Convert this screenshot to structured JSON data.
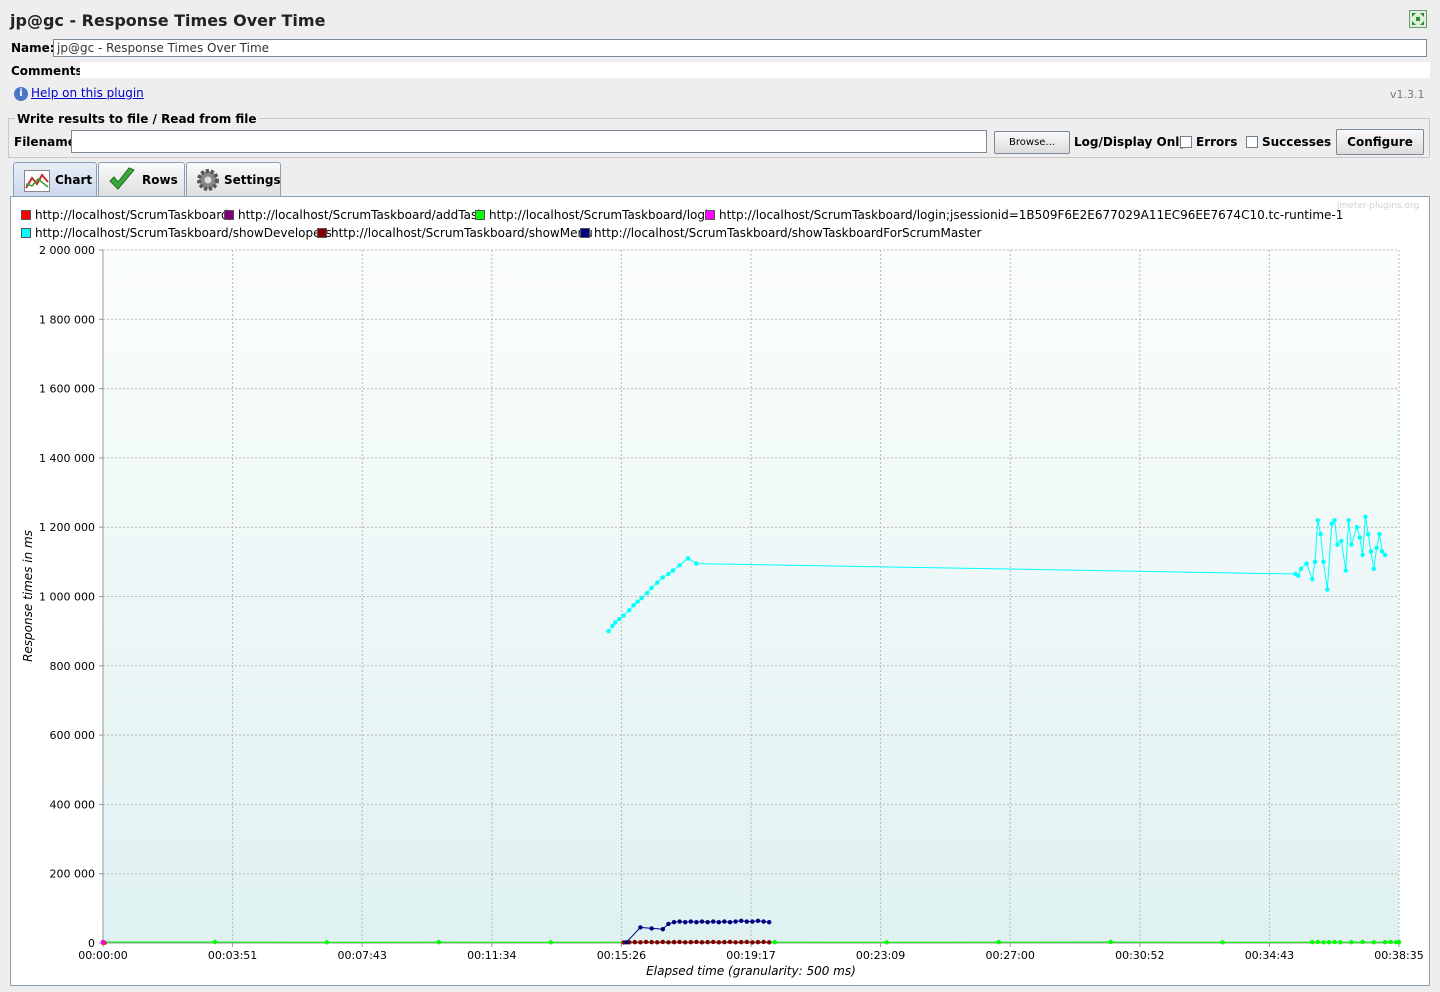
{
  "window": {
    "title": "jp@gc - Response Times Over Time"
  },
  "form": {
    "name_label": "Name:",
    "name_value": "jp@gc - Response Times Over Time",
    "comments_label": "Comments:",
    "help_link": "Help on this plugin",
    "version": "v1.3.1"
  },
  "file_panel": {
    "title": "Write results to file / Read from file",
    "filename_label": "Filename",
    "filename_value": "",
    "browse_label": "Browse...",
    "log_display_label": "Log/Display Only:",
    "errors_label": "Errors",
    "successes_label": "Successes",
    "configure_label": "Configure"
  },
  "tabs": [
    {
      "label": "Chart",
      "selected": true,
      "icon": "chart-icon"
    },
    {
      "label": "Rows",
      "selected": false,
      "icon": "checkmark-icon"
    },
    {
      "label": "Settings",
      "selected": false,
      "icon": "gear-icon"
    }
  ],
  "watermark": "jmeter-plugins.org",
  "chart_data": {
    "type": "line",
    "xlabel": "Elapsed time (granularity: 500 ms)",
    "ylabel": "Response times in ms",
    "ylim": [
      0,
      2000000
    ],
    "yticks": [
      "0",
      "200 000",
      "400 000",
      "600 000",
      "800 000",
      "1 000 000",
      "1 200 000",
      "1 400 000",
      "1 600 000",
      "1 800 000",
      "2 000 000"
    ],
    "xticks": [
      "00:00:00",
      "00:03:51",
      "00:07:43",
      "00:11:34",
      "00:15:26",
      "00:19:17",
      "00:23:09",
      "00:27:00",
      "00:30:52",
      "00:34:43",
      "00:38:35"
    ],
    "xlim_seconds": [
      0,
      2315
    ],
    "grid": true,
    "legend_position": "top",
    "series": [
      {
        "name": "http://localhost/ScrumTaskboard/",
        "color": "#ff0000",
        "x": [
          0,
          3
        ],
        "y": [
          1000,
          1000
        ]
      },
      {
        "name": "http://localhost/ScrumTaskboard/addTask",
        "color": "#800080",
        "x": [],
        "y": []
      },
      {
        "name": "http://localhost/ScrumTaskboard/login",
        "color": "#00ff00",
        "x": [
          0,
          200,
          400,
          600,
          800,
          1000,
          1200,
          1400,
          1600,
          1800,
          2000,
          2160,
          2170,
          2180,
          2190,
          2200,
          2210,
          2230,
          2250,
          2270,
          2290,
          2300,
          2310,
          2315
        ],
        "y": [
          3000,
          3000,
          2000,
          2500,
          2000,
          3000,
          2500,
          2000,
          2500,
          3000,
          2000,
          2500,
          3000,
          2000,
          2500,
          3000,
          2000,
          2500,
          3000,
          2000,
          2500,
          3000,
          2000,
          2500
        ]
      },
      {
        "name": "http://localhost/ScrumTaskboard/login;jsessionid=1B509F6E2E677029A11EC96EE7674C10.tc-runtime-1",
        "color": "#ff00ff",
        "x": [
          0
        ],
        "y": [
          3000
        ]
      },
      {
        "name": "http://localhost/ScrumTaskboard/showDevelopers",
        "color": "#00ffff",
        "x": [
          903,
          910,
          915,
          922,
          930,
          940,
          948,
          955,
          962,
          972,
          980,
          990,
          1000,
          1010,
          1018,
          1030,
          1045,
          1060,
          2130,
          2135,
          2140,
          2150,
          2160,
          2165,
          2170,
          2175,
          2180,
          2187,
          2195,
          2200,
          2205,
          2212,
          2220,
          2225,
          2230,
          2240,
          2245,
          2250,
          2255,
          2260,
          2265,
          2270,
          2275,
          2280,
          2285,
          2290
        ],
        "y": [
          900000,
          915000,
          925000,
          935000,
          945000,
          960000,
          975000,
          985000,
          995000,
          1010000,
          1025000,
          1040000,
          1055000,
          1065000,
          1075000,
          1090000,
          1110000,
          1095000,
          1065000,
          1060000,
          1080000,
          1095000,
          1050000,
          1100000,
          1220000,
          1180000,
          1100000,
          1020000,
          1210000,
          1220000,
          1150000,
          1160000,
          1075000,
          1220000,
          1150000,
          1200000,
          1170000,
          1120000,
          1230000,
          1180000,
          1130000,
          1080000,
          1140000,
          1180000,
          1130000,
          1120000
        ]
      },
      {
        "name": "http://localhost/ScrumTaskboard/showMenu",
        "color": "#800000",
        "x": [
          930,
          940,
          950,
          960,
          970,
          980,
          990,
          1000,
          1010,
          1020,
          1030,
          1040,
          1050,
          1060,
          1070,
          1080,
          1090,
          1100,
          1110,
          1120,
          1130,
          1140,
          1150,
          1160,
          1170,
          1180,
          1190
        ],
        "y": [
          1500,
          2000,
          2500,
          2000,
          3000,
          2500,
          2000,
          3000,
          2000,
          2500,
          3000,
          2000,
          2500,
          3000,
          2000,
          2500,
          3000,
          2000,
          2500,
          3000,
          2000,
          2500,
          3000,
          2000,
          2500,
          3000,
          2000
        ]
      },
      {
        "name": "http://localhost/ScrumTaskboard/showTaskboardForScrumMaster",
        "color": "#000080",
        "x": [
          935,
          960,
          980,
          1000,
          1010,
          1020,
          1030,
          1040,
          1050,
          1060,
          1070,
          1080,
          1090,
          1100,
          1110,
          1120,
          1130,
          1140,
          1150,
          1160,
          1170,
          1180,
          1190
        ],
        "y": [
          2000,
          45000,
          42000,
          40000,
          55000,
          60000,
          62000,
          60000,
          62000,
          60000,
          62000,
          60000,
          62000,
          60000,
          62000,
          60000,
          62000,
          64000,
          62000,
          62000,
          64000,
          62000,
          60000
        ]
      }
    ]
  }
}
